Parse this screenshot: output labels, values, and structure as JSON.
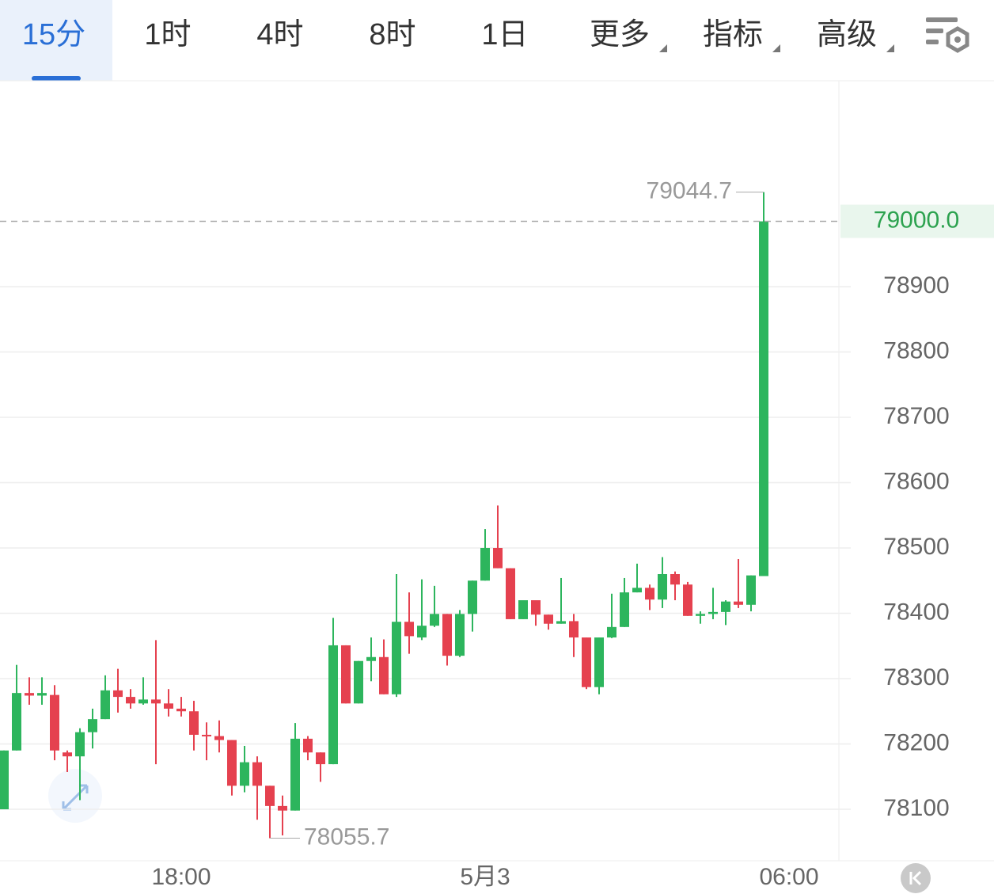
{
  "tabs": {
    "items": [
      "15分",
      "1时",
      "4时",
      "8时",
      "1日",
      "更多",
      "指标",
      "高级"
    ],
    "active": 0
  },
  "chart_data": {
    "type": "candlestick",
    "open": [
      78100,
      78190,
      78278,
      78274,
      78275,
      78187,
      78181,
      78218,
      78238,
      78282,
      78272,
      78262,
      78268,
      78262,
      78254,
      78250,
      78214,
      78212,
      78206,
      78136,
      78172,
      78136,
      78105,
      78098,
      78208,
      78187,
      78169,
      78351,
      78262,
      78327,
      78333,
      78276,
      78387,
      78363,
      78381,
      78399,
      78335,
      78399,
      78450,
      78500,
      78469,
      78391,
      78420,
      78398,
      78384,
      78388,
      78363,
      78287,
      78363,
      78379,
      78432,
      78439,
      78421,
      78460,
      78444,
      78396,
      78399,
      78402,
      78418,
      78413,
      78457
    ],
    "high": [
      78190,
      78321,
      78302,
      78302,
      78290,
      78190,
      78224,
      78254,
      78305,
      78315,
      78284,
      78302,
      78359,
      78284,
      78272,
      78266,
      78233,
      78236,
      78206,
      78197,
      78181,
      78136,
      78121,
      78232,
      78212,
      78187,
      78393,
      78351,
      78327,
      78363,
      78360,
      78460,
      78432,
      78452,
      78442,
      78399,
      78405,
      78450,
      78529,
      78565,
      78469,
      78420,
      78420,
      78398,
      78454,
      78399,
      78363,
      78363,
      78430,
      78454,
      78476,
      78444,
      78486,
      78464,
      78448,
      78403,
      78439,
      78420,
      78483,
      78458,
      79044.7
    ],
    "low": [
      78100,
      78190,
      78260,
      78260,
      78175,
      78157,
      78114,
      78193,
      78238,
      78248,
      78254,
      78260,
      78169,
      78242,
      78242,
      78190,
      78175,
      78187,
      78121,
      78126,
      78084,
      78055.7,
      78060,
      78098,
      78175,
      78142,
      78169,
      78262,
      78262,
      78296,
      78276,
      78272,
      78338,
      78359,
      78379,
      78320,
      78333,
      78372,
      78450,
      78469,
      78391,
      78391,
      78381,
      78375,
      78384,
      78333,
      78284,
      78276,
      78362,
      78379,
      78432,
      78405,
      78408,
      78420,
      78396,
      78384,
      78391,
      78382,
      78408,
      78403,
      78457
    ],
    "close": [
      78190,
      78278,
      78274,
      78278,
      78190,
      78181,
      78218,
      78238,
      78282,
      78272,
      78262,
      78268,
      78262,
      78254,
      78250,
      78214,
      78212,
      78206,
      78136,
      78172,
      78136,
      78105,
      78098,
      78208,
      78187,
      78169,
      78351,
      78262,
      78327,
      78333,
      78276,
      78387,
      78365,
      78381,
      78399,
      78335,
      78399,
      78450,
      78500,
      78469,
      78391,
      78420,
      78398,
      78384,
      78388,
      78363,
      78287,
      78363,
      78379,
      78432,
      78439,
      78421,
      78460,
      78444,
      78396,
      78399,
      78402,
      78418,
      78413,
      78458,
      79000
    ],
    "up_color": "#2db55d",
    "down_color": "#e5414f",
    "xlim": [
      -0.3125,
      65.9375
    ],
    "xticks": [
      {
        "value": 14,
        "label": "18:00"
      },
      {
        "value": 38,
        "label": "5月3"
      },
      {
        "value": 62,
        "label": "06:00"
      }
    ],
    "ylim": [
      78021.2,
      79215.2
    ],
    "yticks": [
      78100,
      78200,
      78300,
      78400,
      78500,
      78600,
      78700,
      78800,
      78900
    ],
    "grid": true,
    "last_price": {
      "value": 79000,
      "label": "79000.0"
    },
    "max_label": 79044.7,
    "min_label": 78055.7
  }
}
